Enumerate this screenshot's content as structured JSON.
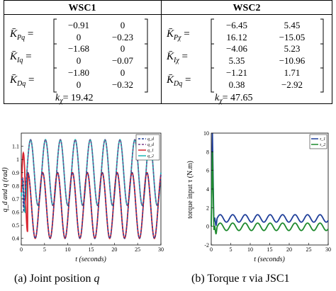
{
  "table": {
    "headers": [
      "WSC1",
      "WSC2"
    ],
    "wsc1": {
      "kp": {
        "label": "K̄",
        "sub": "Pq",
        "matrix": [
          [
            "−0.91",
            "0"
          ],
          [
            "0",
            "−0.23"
          ]
        ]
      },
      "ki": {
        "label": "K̄",
        "sub": "Iq",
        "matrix": [
          [
            "−1.68",
            "0"
          ],
          [
            "0",
            "−0.07"
          ]
        ]
      },
      "kd": {
        "label": "K̄",
        "sub": "Dq",
        "matrix": [
          [
            "−1.80",
            "0"
          ],
          [
            "0",
            "−0.32"
          ]
        ]
      },
      "kchi": {
        "label": "k",
        "sub": "χ",
        "value": "= 19.42"
      }
    },
    "wsc2": {
      "kp": {
        "label": "K̄",
        "sub": "Pχ",
        "matrix": [
          [
            "−6.45",
            "5.45"
          ],
          [
            "16.12",
            "−15.05"
          ]
        ]
      },
      "ki": {
        "label": "K̄",
        "sub": "Iχ",
        "matrix": [
          [
            "−4.06",
            "5.23"
          ],
          [
            "5.35",
            "−10.96"
          ]
        ]
      },
      "kd": {
        "label": "K̄",
        "sub": "Dq",
        "matrix": [
          [
            "−1.21",
            "1.71"
          ],
          [
            "0.38",
            "−2.92"
          ]
        ]
      },
      "kchi": {
        "label": "k",
        "sub": "χ",
        "value": "= 47.65"
      }
    }
  },
  "captions": {
    "a_prefix": "(a) Joint position ",
    "a_var": "q",
    "b_prefix": "(b) Torque ",
    "b_var": "τ",
    "b_suffix": " via JSC1"
  },
  "chart_data": [
    {
      "type": "line",
      "xlabel": "t (seconds)",
      "ylabel": "q_d and q (rad)",
      "xlim": [
        0,
        30
      ],
      "ylim": [
        0.35,
        1.2
      ],
      "xticks": [
        "0",
        "5",
        "10",
        "15",
        "20",
        "25",
        "30"
      ],
      "yticks": [
        "0.4",
        "0.5",
        "0.6",
        "0.7",
        "0.8",
        "0.9",
        "1",
        "1.1"
      ],
      "legend": [
        "q_d",
        "q_d",
        "q_1",
        "q_2"
      ],
      "legend_position": "top-right",
      "colors": {
        "qd1": "#1f3f9a",
        "qd2": "#7a3d8a",
        "q1": "#d7232e",
        "q2": "#1fb5b5"
      },
      "series": [
        {
          "name": "q_d",
          "description": "dashed, desired sinusoid, amplitude 0.25 around 0.65, period 3.2 s"
        },
        {
          "name": "q_d",
          "description": "dashed, desired sinusoid, amplitude 0.25 around 0.9, period 3.2 s"
        },
        {
          "name": "q_1",
          "description": "solid, initial transient to 1.05 then tracks 0.4–0.9"
        },
        {
          "name": "q_2",
          "description": "solid, initial transient 0.7–0.85 then tracks 0.65–1.15"
        }
      ],
      "grid": false
    },
    {
      "type": "line",
      "xlabel": "t (seconds)",
      "ylabel": "torque input τ (N.m)",
      "xlim": [
        0,
        30
      ],
      "ylim": [
        -2,
        10
      ],
      "xticks": [
        "0",
        "5",
        "10",
        "15",
        "20",
        "25",
        "30"
      ],
      "yticks": [
        "-2",
        "0",
        "2",
        "4",
        "6",
        "8",
        "10"
      ],
      "legend": [
        "τ_1",
        "τ_2"
      ],
      "legend_position": "top-right",
      "colors": {
        "tau1": "#1f3f9a",
        "tau2": "#1e8a2e"
      },
      "series": [
        {
          "name": "τ_1",
          "description": "initial spike to ~10 at t≈0.3, then oscillates 0.4–1.3, period 3.2 s"
        },
        {
          "name": "τ_2",
          "description": "initial spike, then oscillates −0.5–0.4, period 3.2 s"
        }
      ],
      "grid": false
    }
  ]
}
